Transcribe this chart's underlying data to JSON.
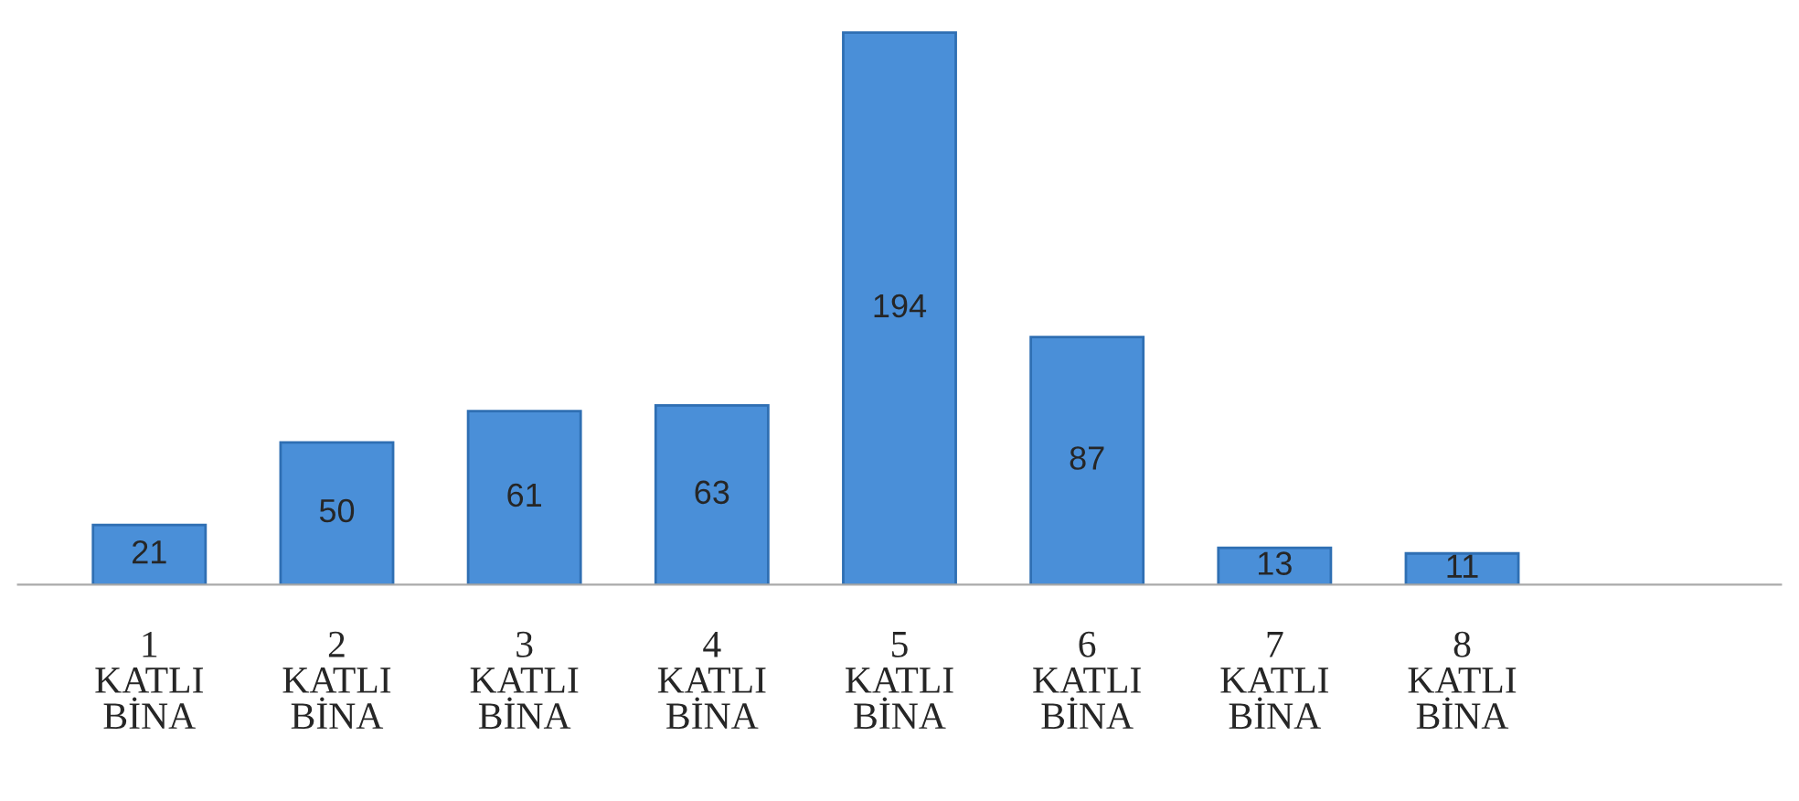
{
  "chart_data": {
    "type": "bar",
    "categories": [
      "1\nKATLI\nBİNA",
      "2\nKATLI\nBİNA",
      "3\nKATLI\nBİNA",
      "4\nKATLI\nBİNA",
      "5\nKATLI\nBİNA",
      "6\nKATLI\nBİNA",
      "7\nKATLI\nBİNA",
      "8\nKATLI\nBİNA"
    ],
    "values": [
      21,
      50,
      61,
      63,
      194,
      87,
      13,
      11
    ],
    "color": "#4a8fd8",
    "data_labels": true,
    "grid": false
  }
}
